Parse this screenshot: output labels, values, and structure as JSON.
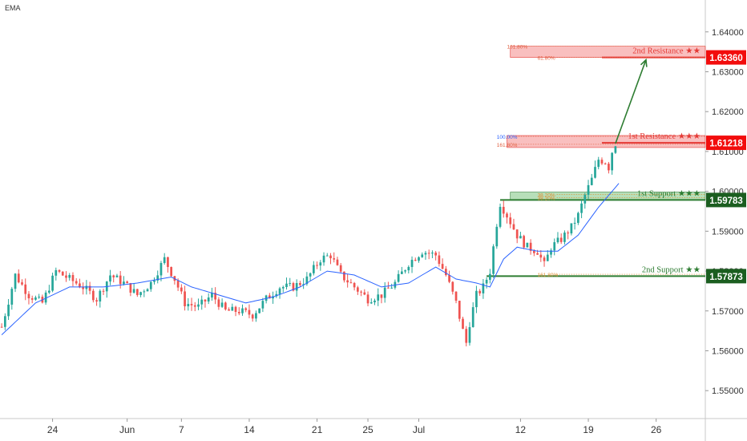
{
  "indicator": "EMA",
  "colors": {
    "bull": "#26a69a",
    "bear": "#ef5350",
    "wick": "#333333",
    "ema": "#2962ff",
    "resistance_zone": "#f48a8a",
    "resistance_line": "#e53935",
    "resistance_badge": "#f20d0d",
    "support_zone": "#7cc47f",
    "support_line": "#2e7d32",
    "support_badge": "#1b5e20",
    "arrow": "#2e7d32"
  },
  "chart_data": {
    "type": "candlestick",
    "y_axis": {
      "range": [
        1.543,
        1.648
      ],
      "ticks": [
        "1.64000",
        "1.63000",
        "1.62000",
        "1.61000",
        "1.60000",
        "1.59000",
        "1.58000",
        "1.57000",
        "1.56000",
        "1.55000"
      ]
    },
    "x_axis": {
      "ticks": [
        {
          "label": "24",
          "bar": 15
        },
        {
          "label": "Jun",
          "bar": 37
        },
        {
          "label": "7",
          "bar": 53
        },
        {
          "label": "14",
          "bar": 73
        },
        {
          "label": "21",
          "bar": 93
        },
        {
          "label": "25",
          "bar": 108
        },
        {
          "label": "Jul",
          "bar": 123
        },
        {
          "label": "12",
          "bar": 153
        },
        {
          "label": "19",
          "bar": 173
        },
        {
          "label": "26",
          "bar": 193
        }
      ],
      "bar_count": 208
    },
    "keypoints": [
      [
        0,
        1.566
      ],
      [
        4,
        1.579
      ],
      [
        8,
        1.574
      ],
      [
        12,
        1.572
      ],
      [
        16,
        1.58
      ],
      [
        20,
        1.578
      ],
      [
        24,
        1.576
      ],
      [
        28,
        1.573
      ],
      [
        32,
        1.579
      ],
      [
        36,
        1.577
      ],
      [
        40,
        1.574
      ],
      [
        44,
        1.577
      ],
      [
        48,
        1.583
      ],
      [
        51,
        1.578
      ],
      [
        54,
        1.572
      ],
      [
        58,
        1.571
      ],
      [
        62,
        1.574
      ],
      [
        66,
        1.57
      ],
      [
        70,
        1.57
      ],
      [
        74,
        1.569
      ],
      [
        78,
        1.573
      ],
      [
        82,
        1.576
      ],
      [
        86,
        1.576
      ],
      [
        90,
        1.578
      ],
      [
        94,
        1.583
      ],
      [
        97,
        1.584
      ],
      [
        100,
        1.579
      ],
      [
        104,
        1.576
      ],
      [
        108,
        1.573
      ],
      [
        112,
        1.574
      ],
      [
        116,
        1.577
      ],
      [
        120,
        1.582
      ],
      [
        124,
        1.585
      ],
      [
        128,
        1.584
      ],
      [
        131,
        1.579
      ],
      [
        134,
        1.572
      ],
      [
        136,
        1.565
      ],
      [
        137,
        1.562
      ],
      [
        138,
        1.567
      ],
      [
        140,
        1.574
      ],
      [
        142,
        1.576
      ],
      [
        144,
        1.58
      ],
      [
        146,
        1.592
      ],
      [
        147,
        1.597
      ],
      [
        149,
        1.594
      ],
      [
        152,
        1.589
      ],
      [
        155,
        1.586
      ],
      [
        158,
        1.585
      ],
      [
        160,
        1.5815
      ],
      [
        162,
        1.586
      ],
      [
        165,
        1.588
      ],
      [
        168,
        1.591
      ],
      [
        170,
        1.594
      ],
      [
        172,
        1.599
      ],
      [
        174,
        1.603
      ],
      [
        176,
        1.608
      ],
      [
        178,
        1.6075
      ],
      [
        179,
        1.606
      ],
      [
        180,
        1.61
      ],
      [
        181,
        1.612
      ]
    ],
    "ema_keypoints": [
      [
        0,
        1.564
      ],
      [
        10,
        1.572
      ],
      [
        20,
        1.576
      ],
      [
        30,
        1.576
      ],
      [
        40,
        1.577
      ],
      [
        50,
        1.5785
      ],
      [
        56,
        1.576
      ],
      [
        64,
        1.574
      ],
      [
        72,
        1.572
      ],
      [
        80,
        1.5735
      ],
      [
        88,
        1.576
      ],
      [
        96,
        1.58
      ],
      [
        104,
        1.579
      ],
      [
        112,
        1.576
      ],
      [
        120,
        1.577
      ],
      [
        128,
        1.581
      ],
      [
        134,
        1.578
      ],
      [
        140,
        1.577
      ],
      [
        144,
        1.576
      ],
      [
        148,
        1.583
      ],
      [
        152,
        1.586
      ],
      [
        158,
        1.585
      ],
      [
        164,
        1.585
      ],
      [
        170,
        1.589
      ],
      [
        176,
        1.596
      ],
      [
        182,
        1.602
      ]
    ],
    "levels": [
      {
        "name": "2nd Resistance",
        "stars": "★★",
        "value": 1.6336,
        "badge": "1.63360",
        "kind": "resistance",
        "zone": [
          1.6336,
          1.6364
        ],
        "fib": [
          "161.80%",
          "61.80%"
        ],
        "fib_values": [
          1.6364,
          1.6336
        ]
      },
      {
        "name": "1st Resistance",
        "stars": "★★★",
        "value": 1.61218,
        "badge": "1.61218",
        "kind": "resistance",
        "zone": [
          1.611,
          1.614
        ],
        "fib": [
          "100.00%",
          "161.80%"
        ],
        "fib_values": [
          1.6138,
          1.6118
        ]
      },
      {
        "name": "1st Support",
        "stars": "★★★",
        "value": 1.59783,
        "badge": "1.59783",
        "kind": "support",
        "zone": [
          1.5978,
          1.5998
        ],
        "fib": [
          "38.20%",
          "38.20%"
        ],
        "fib_values": [
          1.5992,
          1.5984
        ]
      },
      {
        "name": "2nd Support",
        "stars": "★★",
        "value": 1.57873,
        "badge": "1.57873",
        "kind": "support",
        "zone": null,
        "fib": [
          "161.80%"
        ],
        "fib_values": [
          1.5792
        ]
      }
    ],
    "arrow": {
      "from": [
        181,
        1.612
      ],
      "to": [
        190,
        1.633
      ]
    }
  }
}
